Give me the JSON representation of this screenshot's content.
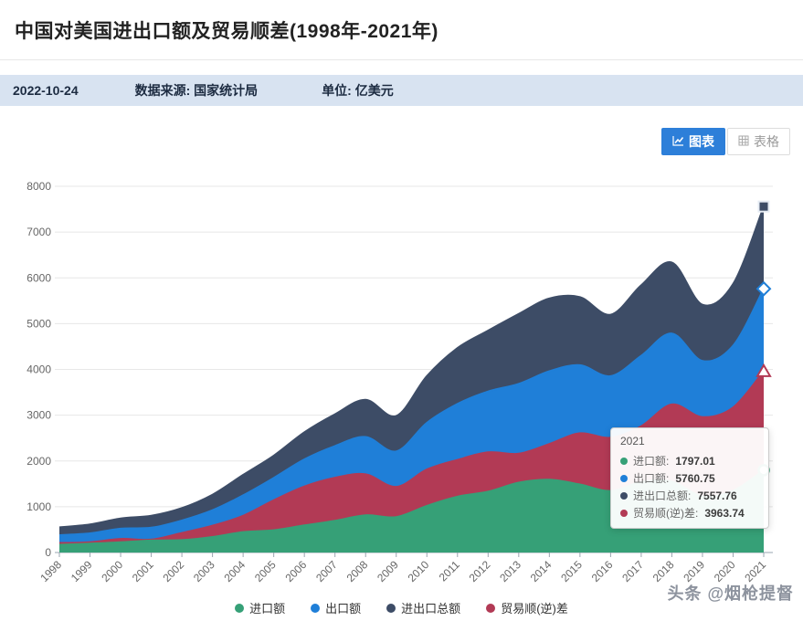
{
  "header": {
    "title": "中国对美国进出口额及贸易顺差(1998年-2021年)"
  },
  "info_bar": {
    "date": "2022-10-24",
    "source": "数据来源: 国家统计局",
    "unit": "单位: 亿美元"
  },
  "toolbar": {
    "chart_tab": "图表",
    "table_tab": "表格",
    "icons": {
      "chart_tab": "line-chart-icon",
      "table_tab": "table-grid-icon"
    },
    "active_color": "#2d7fd9"
  },
  "chart_data": {
    "type": "area",
    "title": "中国对美国进出口额及贸易顺差(1998年-2021年)",
    "unit": "亿美元",
    "x": [
      "1998",
      "1999",
      "2000",
      "2001",
      "2002",
      "2003",
      "2004",
      "2005",
      "2006",
      "2007",
      "2008",
      "2009",
      "2010",
      "2011",
      "2012",
      "2013",
      "2014",
      "2015",
      "2016",
      "2017",
      "2018",
      "2019",
      "2020",
      "2021"
    ],
    "ylim": [
      0,
      8000
    ],
    "y_ticks": [
      0,
      1000,
      2000,
      3000,
      4000,
      5000,
      6000,
      7000,
      8000
    ],
    "grid": true,
    "legend_position": "bottom",
    "series": [
      {
        "id": "total",
        "name": "进出口总额",
        "color": "#3d4c66",
        "symbol": "square",
        "values": [
          549.73,
          614.26,
          744.67,
          804.87,
          971.73,
          1263.5,
          1695.99,
          2116.26,
          2626.82,
          3020.56,
          3337.39,
          2982.5,
          3853.42,
          4466.48,
          4846.9,
          5210.08,
          5550.93,
          5578.93,
          5195.84,
          5836.98,
          6335.18,
          5412.19,
          5867.2,
          7557.76
        ]
      },
      {
        "id": "exports",
        "name": "出口额",
        "color": "#1f7fd8",
        "symbol": "diamond",
        "values": [
          379.76,
          419.46,
          521.04,
          542.83,
          699.46,
          924.67,
          1249.42,
          1629.0,
          2034.72,
          2326.77,
          2523.03,
          2208.17,
          2833.04,
          3244.92,
          3517.97,
          3684.27,
          3960.83,
          4092.15,
          3851.56,
          4297.55,
          4784.23,
          4185.08,
          4518.13,
          5760.75
        ]
      },
      {
        "id": "surplus",
        "name": "贸易顺(逆)差",
        "color": "#b23a55",
        "symbol": "triangle",
        "values": [
          209.79,
          224.66,
          297.41,
          280.79,
          427.19,
          585.84,
          802.85,
          1141.74,
          1442.62,
          1632.98,
          1708.67,
          1433.84,
          1812.66,
          2023.36,
          2189.04,
          2158.46,
          2370.73,
          2605.37,
          2507.28,
          2758.12,
          3233.28,
          2957.97,
          3169.06,
          3963.74
        ]
      },
      {
        "id": "imports",
        "name": "进口额",
        "color": "#36a077",
        "symbol": "circle",
        "values": [
          169.97,
          194.8,
          223.63,
          262.04,
          272.27,
          338.83,
          446.57,
          487.26,
          592.1,
          693.79,
          814.36,
          774.33,
          1020.38,
          1221.56,
          1328.93,
          1525.81,
          1590.1,
          1486.78,
          1344.28,
          1539.43,
          1550.95,
          1227.11,
          1349.07,
          1797.01
        ]
      }
    ]
  },
  "legend": {
    "items": [
      {
        "label": "进口额",
        "color": "#36a077"
      },
      {
        "label": "出口额",
        "color": "#1f7fd8"
      },
      {
        "label": "进出口总额",
        "color": "#3d4c66"
      },
      {
        "label": "贸易顺(逆)差",
        "color": "#b23a55"
      }
    ]
  },
  "tooltip": {
    "title": "2021",
    "rows": [
      {
        "label": "进口额:",
        "value": "1797.01",
        "color": "#36a077"
      },
      {
        "label": "出口额:",
        "value": "5760.75",
        "color": "#1f7fd8"
      },
      {
        "label": "进出口总额:",
        "value": "7557.76",
        "color": "#3d4c66"
      },
      {
        "label": "贸易顺(逆)差:",
        "value": "3963.74",
        "color": "#b23a55"
      }
    ]
  },
  "watermark": "头条 @烟枪提督"
}
